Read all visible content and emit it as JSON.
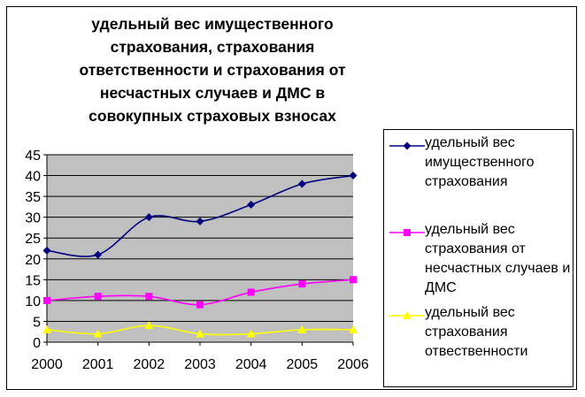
{
  "chart_data": {
    "type": "line",
    "title": "удельный вес имущественного страхования, страхования ответственности и страхования от несчастных случаев и ДМС в совокупных страховых взносах",
    "xlabel": "",
    "ylabel": "",
    "categories": [
      "2000",
      "2001",
      "2002",
      "2003",
      "2004",
      "2005",
      "2006"
    ],
    "ylim": [
      0,
      45
    ],
    "yticks": [
      "0",
      "5",
      "10",
      "15",
      "20",
      "25",
      "30",
      "35",
      "40",
      "45"
    ],
    "grid": true,
    "legend_position": "right",
    "plot_background": "#c0c0c0",
    "series": [
      {
        "name": "удельный вес имущественного страхования",
        "values": [
          22,
          21,
          30,
          29,
          33,
          38,
          40
        ],
        "color": "#000080",
        "marker": "diamond"
      },
      {
        "name": "удельный вес страхования от несчастных случаев и ДМС",
        "values": [
          10,
          11,
          11,
          9,
          12,
          14,
          15
        ],
        "color": "#ff00ff",
        "marker": "square"
      },
      {
        "name": "удельный вес страхования отвественности",
        "values": [
          3,
          2,
          4,
          2,
          2,
          3,
          3
        ],
        "color": "#ffff00",
        "marker": "triangle"
      }
    ]
  }
}
